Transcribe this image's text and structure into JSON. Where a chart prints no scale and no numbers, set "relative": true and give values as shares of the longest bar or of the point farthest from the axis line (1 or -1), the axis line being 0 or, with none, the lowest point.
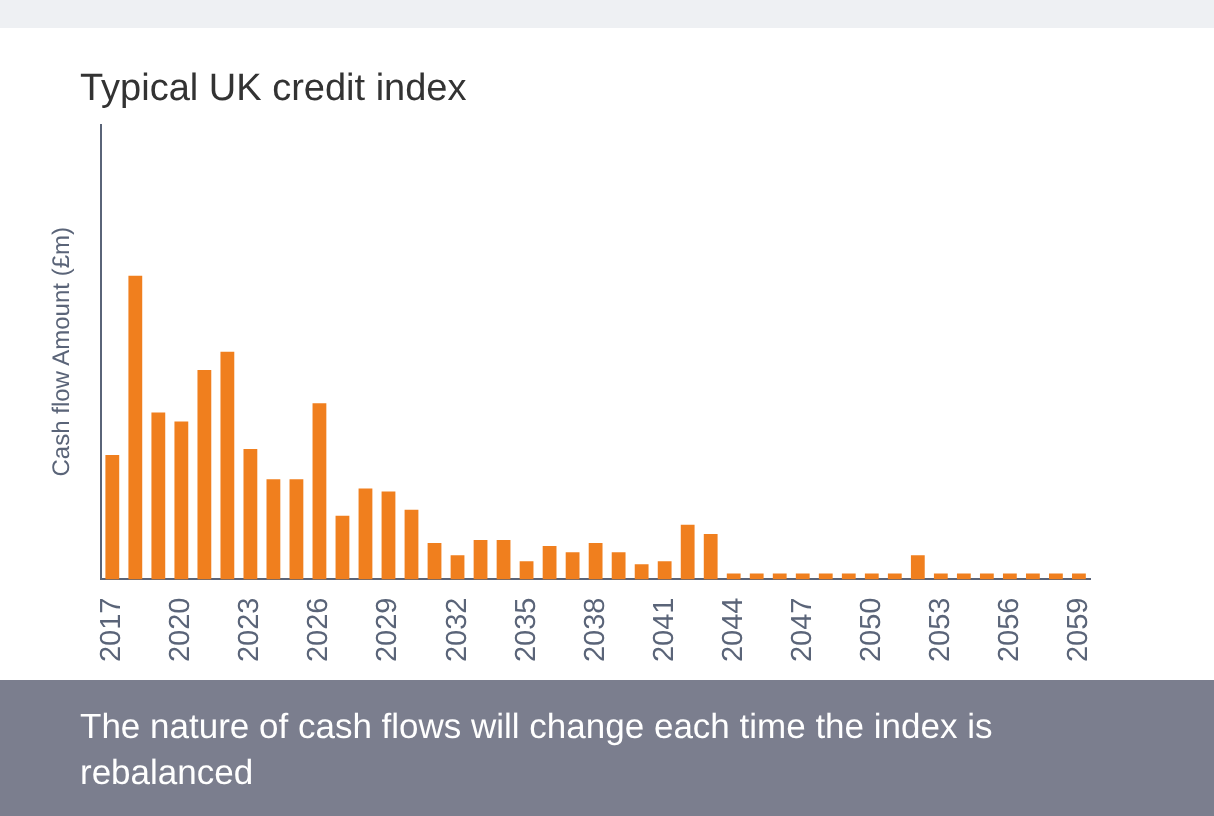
{
  "chart_data": {
    "type": "bar",
    "title": "Typical UK credit index",
    "ylabel": "Cash flow Amount (£m)",
    "relative": true,
    "color": "#f07f1e",
    "categories": [
      "2017",
      null,
      null,
      "2020",
      null,
      null,
      "2023",
      null,
      null,
      "2026",
      null,
      null,
      "2029",
      null,
      null,
      "2032",
      null,
      null,
      "2035",
      null,
      null,
      "2038",
      null,
      null,
      "2041",
      null,
      null,
      "2044",
      null,
      null,
      "2047",
      null,
      null,
      "2050",
      null,
      null,
      "2053",
      null,
      null,
      "2056",
      null,
      null,
      "2059"
    ],
    "values": [
      0.41,
      1,
      0.55,
      0.52,
      0.69,
      0.75,
      0.43,
      0.33,
      0.33,
      0.58,
      0.21,
      0.3,
      0.29,
      0.23,
      0.12,
      0.08,
      0.13,
      0.13,
      0.06,
      0.11,
      0.09,
      0.12,
      0.09,
      0.05,
      0.06,
      0.18,
      0.15,
      0.02,
      0.02,
      0.02,
      0.02,
      0.02,
      0.02,
      0.02,
      0.02,
      0.08,
      0.02,
      0.02,
      0.02,
      0.02,
      0.02,
      0.02,
      0.02
    ],
    "annotations": [
      "The nature of cash flows will change each time the index is rebalanced"
    ]
  }
}
